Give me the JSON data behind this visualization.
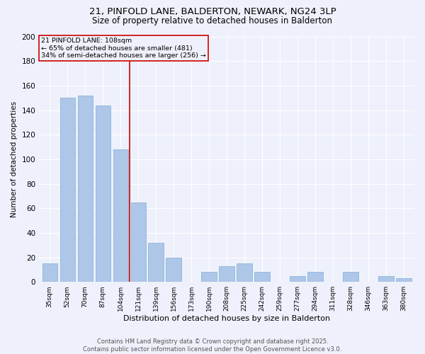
{
  "title1": "21, PINFOLD LANE, BALDERTON, NEWARK, NG24 3LP",
  "title2": "Size of property relative to detached houses in Balderton",
  "xlabel": "Distribution of detached houses by size in Balderton",
  "ylabel": "Number of detached properties",
  "categories": [
    "35sqm",
    "52sqm",
    "70sqm",
    "87sqm",
    "104sqm",
    "121sqm",
    "139sqm",
    "156sqm",
    "173sqm",
    "190sqm",
    "208sqm",
    "225sqm",
    "242sqm",
    "259sqm",
    "277sqm",
    "294sqm",
    "311sqm",
    "328sqm",
    "346sqm",
    "363sqm",
    "380sqm"
  ],
  "values": [
    15,
    150,
    152,
    144,
    108,
    65,
    32,
    20,
    0,
    8,
    13,
    15,
    8,
    0,
    5,
    8,
    0,
    8,
    0,
    5,
    3
  ],
  "bar_color": "#aec6e8",
  "bar_edge_color": "#7aafd4",
  "vline_x": 4.5,
  "vline_label": "21 PINFOLD LANE: 108sqm",
  "annotation_line1": "← 65% of detached houses are smaller (481)",
  "annotation_line2": "34% of semi-detached houses are larger (256) →",
  "annotation_box_color": "#cc0000",
  "ylim": [
    0,
    200
  ],
  "yticks": [
    0,
    20,
    40,
    60,
    80,
    100,
    120,
    140,
    160,
    180,
    200
  ],
  "bg_color": "#eef1fb",
  "grid_color": "#ffffff",
  "footer1": "Contains HM Land Registry data © Crown copyright and database right 2025.",
  "footer2": "Contains public sector information licensed under the Open Government Licence v3.0."
}
